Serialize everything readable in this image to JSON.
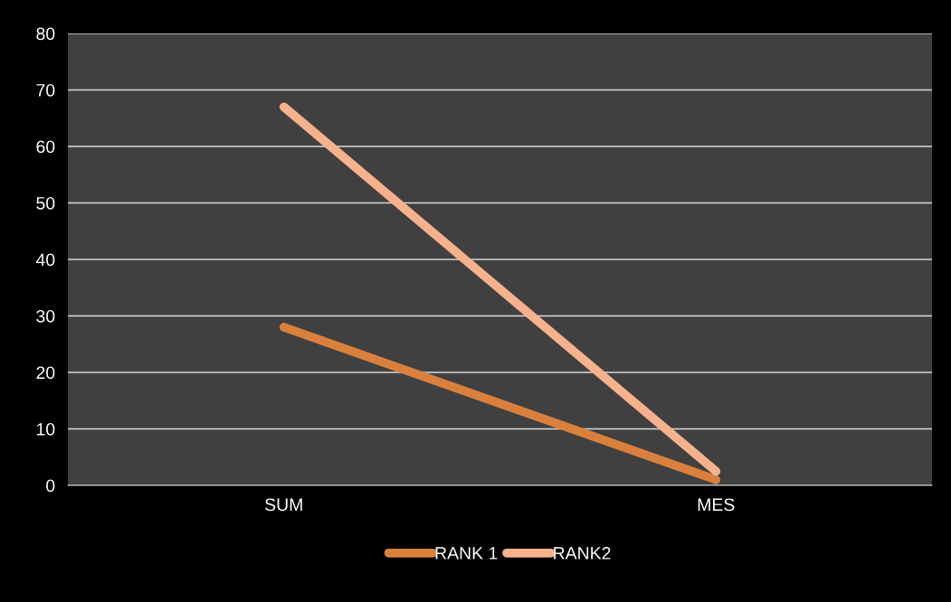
{
  "chart_data": {
    "type": "line",
    "categories": [
      "SUM",
      "MES"
    ],
    "series": [
      {
        "name": "RANK 1",
        "color": "#d9813c",
        "values": [
          28,
          1
        ]
      },
      {
        "name": "RANK2",
        "color": "#f7b18c",
        "values": [
          67,
          2.5
        ]
      }
    ],
    "ylim": [
      0,
      80
    ],
    "yticks": [
      0,
      10,
      20,
      30,
      40,
      50,
      60,
      70,
      80
    ],
    "grid": "y",
    "legend": "bottom",
    "marker": "none",
    "line_style": "solid"
  }
}
